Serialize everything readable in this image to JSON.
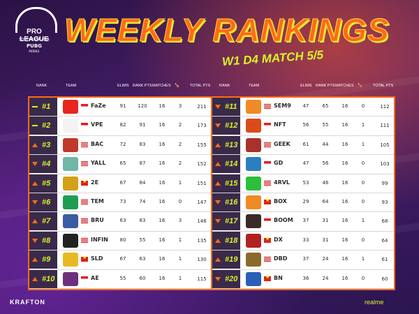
{
  "header": {
    "logo_text": "PRO LEAGUE",
    "logo_sub": "SOUTHEAST ASIA",
    "logo_game": "PUBG",
    "logo_mobile": "MOBILE",
    "title": "WEEKLY RANKINGS",
    "subtitle": "W1 D4 MATCH 5/5"
  },
  "columns": {
    "rank": "RANK",
    "team": "TEAM",
    "elims": "ELIMS",
    "rank_pts": "RANK PTS",
    "matches": "MATCHES",
    "total_pts": "TOTAL PTS"
  },
  "left_rows": [
    {
      "rank": "#1",
      "trend": "same",
      "team": "FaZe",
      "flag": "id",
      "logo_color": "#e8261f",
      "elims": "91",
      "rank_pts": "120",
      "matches": "16",
      "wins": "3",
      "total": "211"
    },
    {
      "rank": "#2",
      "trend": "same",
      "team": "VPE",
      "flag": "id",
      "logo_color": "#f3f3f3",
      "elims": "82",
      "rank_pts": "91",
      "matches": "16",
      "wins": "2",
      "total": "173"
    },
    {
      "rank": "#3",
      "trend": "up",
      "team": "BAC",
      "flag": "my",
      "logo_color": "#c0392b",
      "elims": "72",
      "rank_pts": "83",
      "matches": "16",
      "wins": "2",
      "total": "155"
    },
    {
      "rank": "#4",
      "trend": "down",
      "team": "YALL",
      "flag": "my",
      "logo_color": "#6fb7a8",
      "elims": "65",
      "rank_pts": "87",
      "matches": "16",
      "wins": "2",
      "total": "152"
    },
    {
      "rank": "#5",
      "trend": "up",
      "team": "2E",
      "flag": "vn",
      "logo_color": "#d4a017",
      "elims": "67",
      "rank_pts": "84",
      "matches": "16",
      "wins": "1",
      "total": "151"
    },
    {
      "rank": "#6",
      "trend": "down",
      "team": "TEM",
      "flag": "my",
      "logo_color": "#1f9d55",
      "elims": "73",
      "rank_pts": "74",
      "matches": "16",
      "wins": "0",
      "total": "147"
    },
    {
      "rank": "#7",
      "trend": "up",
      "team": "BRU",
      "flag": "my",
      "logo_color": "#3b5ba5",
      "elims": "63",
      "rank_pts": "83",
      "matches": "16",
      "wins": "3",
      "total": "146"
    },
    {
      "rank": "#8",
      "trend": "down",
      "team": "INFIN",
      "flag": "my",
      "logo_color": "#222222",
      "elims": "80",
      "rank_pts": "55",
      "matches": "16",
      "wins": "1",
      "total": "135"
    },
    {
      "rank": "#9",
      "trend": "up",
      "team": "SLD",
      "flag": "vn",
      "logo_color": "#e8b923",
      "elims": "67",
      "rank_pts": "63",
      "matches": "16",
      "wins": "1",
      "total": "130"
    },
    {
      "rank": "#10",
      "trend": "up",
      "team": "AE",
      "flag": "id",
      "logo_color": "#6d2f7f",
      "elims": "55",
      "rank_pts": "60",
      "matches": "16",
      "wins": "1",
      "total": "115"
    }
  ],
  "right_rows": [
    {
      "rank": "#11",
      "trend": "down",
      "team": "SEM9",
      "flag": "my",
      "logo_color": "#f08a24",
      "elims": "47",
      "rank_pts": "65",
      "matches": "16",
      "wins": "0",
      "total": "112"
    },
    {
      "rank": "#12",
      "trend": "down",
      "team": "NFT",
      "flag": "id",
      "logo_color": "#d94b1a",
      "elims": "56",
      "rank_pts": "55",
      "matches": "16",
      "wins": "1",
      "total": "111"
    },
    {
      "rank": "#13",
      "trend": "up",
      "team": "GEEK",
      "flag": "my",
      "logo_color": "#a8322a",
      "elims": "61",
      "rank_pts": "44",
      "matches": "16",
      "wins": "1",
      "total": "105"
    },
    {
      "rank": "#14",
      "trend": "up",
      "team": "GD",
      "flag": "id",
      "logo_color": "#2b7fc0",
      "elims": "47",
      "rank_pts": "56",
      "matches": "16",
      "wins": "0",
      "total": "103"
    },
    {
      "rank": "#15",
      "trend": "up",
      "team": "4RVL",
      "flag": "my",
      "logo_color": "#2cbf3a",
      "elims": "53",
      "rank_pts": "46",
      "matches": "16",
      "wins": "0",
      "total": "99"
    },
    {
      "rank": "#16",
      "trend": "down",
      "team": "BOX",
      "flag": "vn",
      "logo_color": "#f08a24",
      "elims": "29",
      "rank_pts": "64",
      "matches": "16",
      "wins": "0",
      "total": "93"
    },
    {
      "rank": "#17",
      "trend": "down",
      "team": "BOOM",
      "flag": "id",
      "logo_color": "#3a2a2a",
      "elims": "37",
      "rank_pts": "31",
      "matches": "16",
      "wins": "1",
      "total": "68"
    },
    {
      "rank": "#18",
      "trend": "up",
      "team": "DX",
      "flag": "vn",
      "logo_color": "#b22222",
      "elims": "33",
      "rank_pts": "31",
      "matches": "16",
      "wins": "0",
      "total": "64"
    },
    {
      "rank": "#19",
      "trend": "up",
      "team": "DBD",
      "flag": "my",
      "logo_color": "#8a6a2a",
      "elims": "37",
      "rank_pts": "24",
      "matches": "16",
      "wins": "1",
      "total": "61"
    },
    {
      "rank": "#20",
      "trend": "down",
      "team": "BN",
      "flag": "vn",
      "logo_color": "#2b5fb4",
      "elims": "36",
      "rank_pts": "24",
      "matches": "16",
      "wins": "0",
      "total": "60"
    }
  ],
  "footer": {
    "left": "KRAFTON",
    "right": "realme"
  },
  "colors": {
    "accent": "#ff6a1a",
    "lime": "#d8f22a",
    "rank_bg": "#3a2a4a"
  }
}
